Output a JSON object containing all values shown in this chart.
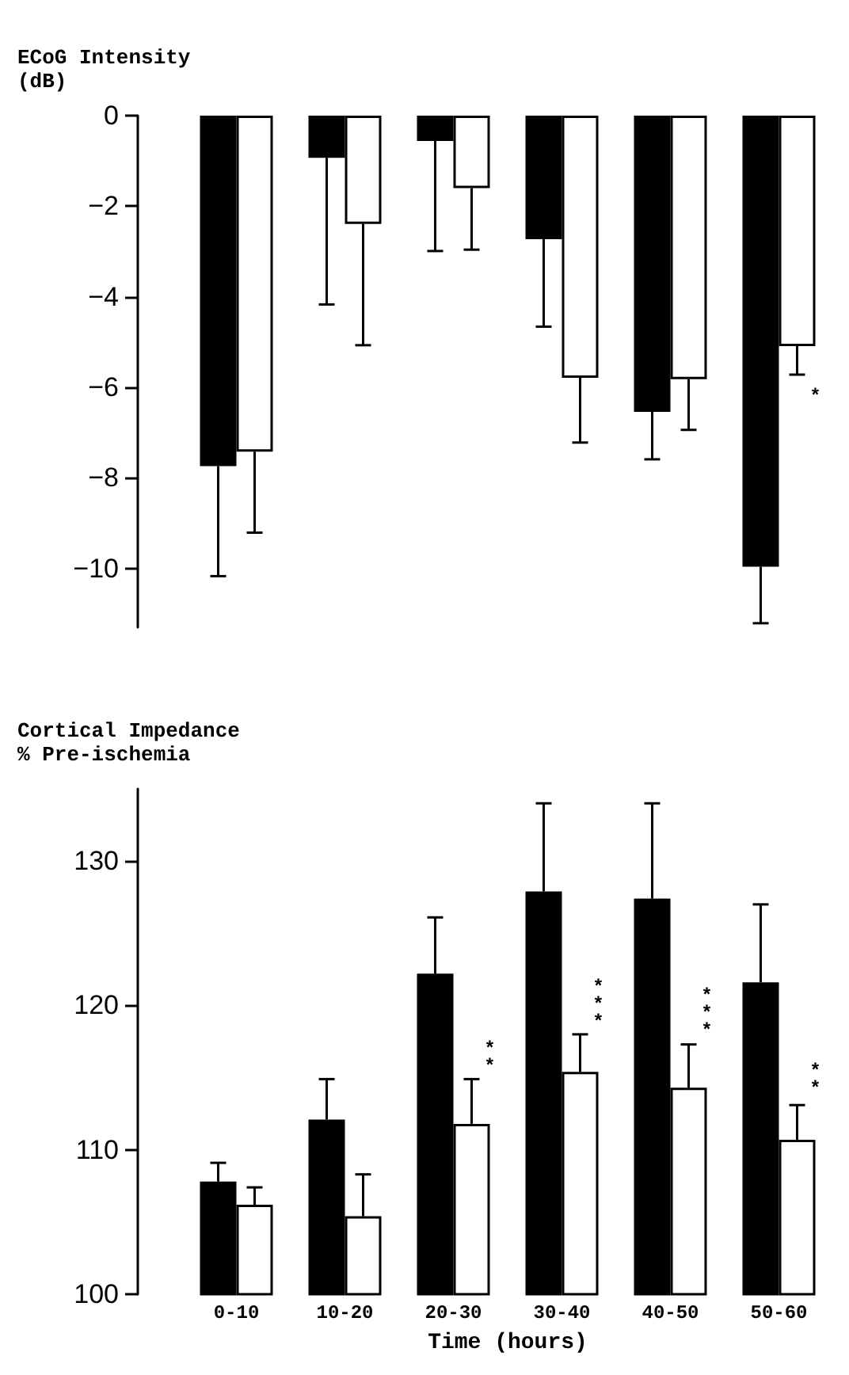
{
  "chart_data": [
    {
      "type": "bar",
      "ylabel": "ECoG Intensity\n(dB)",
      "categories": [
        "0-10",
        "10-20",
        "20-30",
        "30-40",
        "40-50",
        "50-60"
      ],
      "tick_labels": "y",
      "ylim": [
        -11.3,
        0
      ],
      "yticks": [
        0,
        -2,
        -4,
        -6,
        -8,
        -10
      ],
      "grid": false,
      "series": [
        {
          "color": "#000000",
          "values": [
            -7.74,
            -0.93,
            -0.56,
            -2.73,
            -6.54,
            -9.96
          ],
          "errors": [
            [
              -10.17,
              -7.74
            ],
            [
              -4.17,
              -0.93
            ],
            [
              -2.99,
              -0.56
            ],
            [
              -4.66,
              -2.73
            ],
            [
              -7.59,
              -6.54
            ],
            [
              -11.21,
              -9.96
            ]
          ]
        },
        {
          "color": "#ffffff",
          "values": [
            -7.42,
            -2.39,
            -1.6,
            -5.79,
            -5.82,
            -5.09
          ],
          "errors": [
            [
              -9.21,
              -7.42
            ],
            [
              -5.07,
              -2.39
            ],
            [
              -2.96,
              -1.6
            ],
            [
              -7.22,
              -5.79
            ],
            [
              -6.94,
              -5.82
            ],
            [
              -5.72,
              -5.09
            ]
          ]
        }
      ],
      "annotations": [
        {
          "text": "*",
          "x": "50-60",
          "y": -6.15
        }
      ]
    },
    {
      "type": "bar",
      "ylabel": "Cortical Impedance\n% Pre-ischemia",
      "xlabel": "Time (hours)",
      "categories": [
        "0-10",
        "10-20",
        "20-30",
        "30-40",
        "40-50",
        "50-60"
      ],
      "ylim": [
        100,
        135
      ],
      "yticks": [
        100,
        110,
        120,
        130
      ],
      "grid": false,
      "series": [
        {
          "color": "#000000",
          "values": [
            107.8,
            112.1,
            122.2,
            127.9,
            127.4,
            121.6
          ],
          "errors": [
            [
              107.8,
              109.1
            ],
            [
              112.1,
              114.9
            ],
            [
              122.2,
              126.1
            ],
            [
              127.9,
              134.0
            ],
            [
              127.4,
              134.0
            ],
            [
              121.6,
              127.0
            ]
          ]
        },
        {
          "color": "#ffffff",
          "values": [
            106.2,
            105.4,
            111.8,
            115.4,
            114.3,
            110.7
          ],
          "errors": [
            [
              106.2,
              107.4
            ],
            [
              105.4,
              108.3
            ],
            [
              111.8,
              114.9
            ],
            [
              115.4,
              118.0
            ],
            [
              114.3,
              117.3
            ],
            [
              110.7,
              113.1
            ]
          ]
        }
      ],
      "annotations": [
        {
          "text": "**",
          "x": "20-30",
          "y": 116.5
        },
        {
          "text": "***",
          "x": "30-40",
          "y": 120.2
        },
        {
          "text": "***",
          "x": "40-50",
          "y": 119.6
        },
        {
          "text": "**",
          "x": "50-60",
          "y": 115.0
        }
      ]
    }
  ]
}
